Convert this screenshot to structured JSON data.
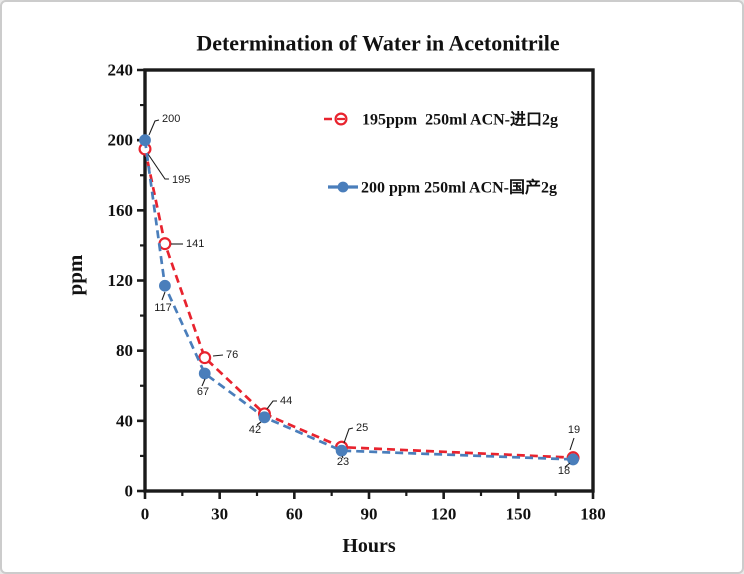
{
  "card": {
    "background": "#ffffff",
    "border_color": "#cccccc"
  },
  "chart_data": {
    "type": "line",
    "title": "Determination of Water in Acetonitrile",
    "xlabel": "Hours",
    "ylabel": "ppm",
    "xlim": [
      0,
      180
    ],
    "ylim": [
      0,
      240
    ],
    "x_major_ticks": [
      0,
      30,
      60,
      90,
      120,
      150,
      180
    ],
    "x_minor_ticks": [
      15,
      45,
      75,
      105,
      135,
      165
    ],
    "y_major_ticks": [
      0,
      40,
      80,
      120,
      160,
      200,
      240
    ],
    "y_minor_ticks": [
      20,
      60,
      100,
      140,
      180,
      220
    ],
    "grid": false,
    "axis_color": "#1a1a1a",
    "legend_position": "inside-upper-center",
    "series": [
      {
        "name": "195ppm  250ml ACN-进口2g",
        "color": "#e8232e",
        "marker": "open-circle",
        "line_style": "dashed",
        "x": [
          0,
          8,
          24,
          48,
          79,
          172
        ],
        "values": [
          195,
          141,
          76,
          44,
          25,
          19
        ],
        "point_labels": [
          "195",
          "141",
          "76",
          "44",
          "25",
          "19"
        ]
      },
      {
        "name": "200 ppm 250ml ACN-国产2g",
        "color": "#4a7ebb",
        "marker": "filled-circle",
        "line_style": "dashed",
        "x": [
          0,
          8,
          24,
          48,
          79,
          172
        ],
        "values": [
          200,
          117,
          67,
          42,
          23,
          18
        ],
        "point_labels": [
          "200",
          "117",
          "67",
          "42",
          "23",
          "18"
        ]
      }
    ]
  }
}
